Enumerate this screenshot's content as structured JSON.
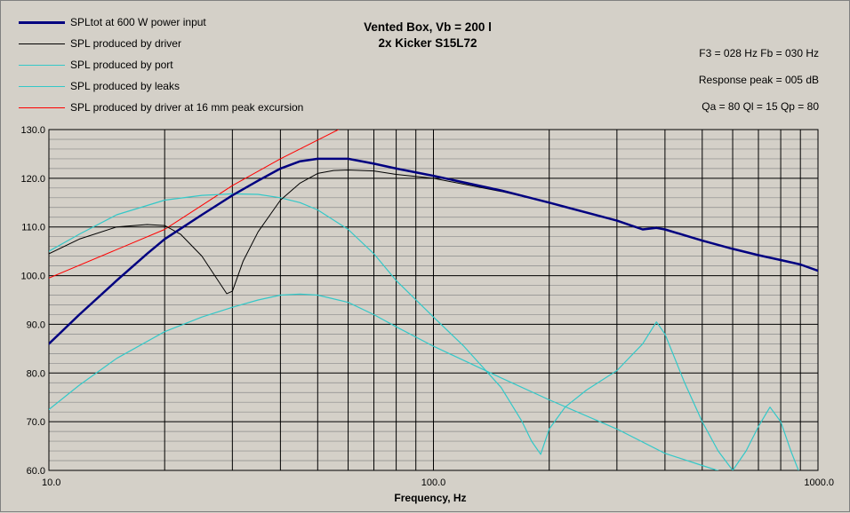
{
  "chart_data": {
    "type": "line",
    "title": "Vented Box, Vb = 200 l",
    "subtitle": "2x Kicker S15L72",
    "xlabel": "Frequency, Hz",
    "ylabel": "",
    "x_scale": "log",
    "xlim": [
      10,
      1000
    ],
    "ylim": [
      60,
      130
    ],
    "grid": true,
    "legend_placement": "top-left",
    "x_tick_labels": [
      "10.0",
      "100.0",
      "1000.0"
    ],
    "y_tick_labels": [
      "60.0",
      "70.0",
      "80.0",
      "90.0",
      "100.0",
      "110.0",
      "120.0",
      "130.0"
    ],
    "annotations": {
      "f3_fb": "F3 = 028 Hz  Fb = 030 Hz",
      "response_peak": "Response peak = 005 dB",
      "q_values": "Qa = 80  Ql = 15  Qp = 80"
    },
    "series": [
      {
        "name": "SPLtot at 600 W power input",
        "color": "#000080",
        "x": [
          10,
          12,
          15,
          18,
          20,
          25,
          30,
          35,
          40,
          45,
          50,
          60,
          70,
          80,
          100,
          150,
          200,
          300,
          350,
          380,
          400,
          500,
          600,
          700,
          800,
          900,
          1000
        ],
        "y": [
          86,
          92,
          99,
          104.5,
          107.5,
          112.5,
          116.5,
          119.5,
          122,
          123.5,
          124,
          124,
          123,
          122,
          120.5,
          117.5,
          115,
          111.3,
          109.5,
          109.8,
          109.5,
          107.2,
          105.5,
          104.2,
          103.2,
          102.3,
          101
        ]
      },
      {
        "name": "SPL produced by driver",
        "color": "#000000",
        "x": [
          10,
          12,
          15,
          18,
          20,
          22,
          25,
          27,
          29,
          30,
          32,
          35,
          40,
          45,
          50,
          55,
          60,
          70,
          80,
          100,
          150,
          200,
          300,
          350,
          380,
          400,
          500,
          600,
          700,
          800,
          900,
          1000
        ],
        "y": [
          104.5,
          107.5,
          110,
          110.5,
          110.3,
          108.5,
          104,
          100,
          96.3,
          96.8,
          103,
          109,
          115.5,
          119,
          121,
          121.6,
          121.7,
          121.5,
          120.8,
          120,
          117.3,
          115,
          111.3,
          109.5,
          110,
          109.5,
          107.2,
          105.5,
          104.2,
          103.2,
          102.3,
          101
        ]
      },
      {
        "name": "SPL produced by port",
        "color": "#33c8c8",
        "x": [
          10,
          12,
          15,
          20,
          25,
          30,
          35,
          40,
          45,
          50,
          60,
          70,
          80,
          100,
          120,
          150,
          170,
          180,
          190,
          200,
          220,
          250,
          300,
          350,
          380,
          400,
          450,
          500,
          550,
          600,
          650,
          700,
          750,
          800,
          850,
          900
        ],
        "y": [
          105,
          108.5,
          112.5,
          115.5,
          116.5,
          116.8,
          116.7,
          116,
          115,
          113.5,
          109.5,
          104.5,
          99,
          91.5,
          85.5,
          77,
          70,
          66,
          63.3,
          68.5,
          73,
          76.5,
          80.5,
          86,
          90.5,
          88,
          78,
          70,
          64,
          60,
          64,
          69,
          73,
          70,
          64,
          59
        ]
      },
      {
        "name": "SPL produced by leaks",
        "color": "#33c8c8",
        "x": [
          10,
          12,
          15,
          20,
          25,
          30,
          35,
          40,
          45,
          50,
          60,
          70,
          80,
          100,
          150,
          200,
          300,
          400,
          500,
          600
        ],
        "y": [
          72.5,
          77.5,
          83,
          88.5,
          91.5,
          93.5,
          95,
          96,
          96.2,
          96,
          94.5,
          92,
          89.5,
          85.5,
          79,
          74.5,
          68.5,
          63.5,
          61,
          59
        ]
      },
      {
        "name": "SPL produced by driver at 16 mm peak excursion",
        "color": "#ff0000",
        "x": [
          10,
          20,
          30,
          40,
          60
        ],
        "y": [
          99.5,
          109.5,
          118.5,
          124,
          131
        ]
      }
    ]
  }
}
